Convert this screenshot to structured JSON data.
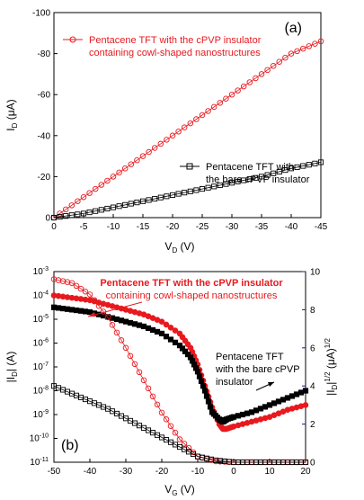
{
  "colors": {
    "red": "#e8191e",
    "black": "#000000",
    "blue": "#1a1aa6",
    "axis": "#000000"
  },
  "chart_data": [
    {
      "type": "scatter",
      "panel_label": "(a)",
      "xlabel": "V",
      "xlabel_sub": "D",
      "xlabel_unit": " (V)",
      "ylabel": "I",
      "ylabel_sub": "D",
      "ylabel_unit": " (μA)",
      "xlim": [
        0,
        -45
      ],
      "ylim": [
        0,
        -100
      ],
      "xticks": [
        0,
        -5,
        -10,
        -15,
        -20,
        -25,
        -30,
        -35,
        -40,
        -45
      ],
      "yticks": [
        0,
        -20,
        -40,
        -60,
        -80,
        -100
      ],
      "series": [
        {
          "name": "Pentacene TFT with the cPVP insulator containing cowl-shaped nanostructures",
          "legend_lines": [
            "Pentacene TFT with the cPVP insulator",
            "containing cowl-shaped nanostructures"
          ],
          "color": "#e8191e",
          "marker": "open-circle",
          "x": [
            0,
            -5,
            -10,
            -15,
            -20,
            -25,
            -30,
            -35,
            -40,
            -45
          ],
          "y": [
            0,
            -10,
            -20,
            -30,
            -40,
            -50,
            -60,
            -70,
            -80,
            -86
          ]
        },
        {
          "name": "Pentacene TFT with the bare cPVP insulator",
          "legend_lines": [
            "Pentacene TFT with",
            "the bare cPVP insulator"
          ],
          "color": "#000000",
          "marker": "open-square",
          "x": [
            0,
            -5,
            -10,
            -15,
            -20,
            -25,
            -30,
            -35,
            -40,
            -45
          ],
          "y": [
            0,
            -2,
            -5,
            -8,
            -11,
            -14,
            -17,
            -20,
            -24,
            -27
          ]
        }
      ]
    },
    {
      "type": "scatter",
      "panel_label": "(b)",
      "xlabel": "V",
      "xlabel_sub": "G",
      "xlabel_unit": " (V)",
      "ylabel_left": "|I",
      "ylabel_left_sub": "D",
      "ylabel_left_end": "| (A)",
      "ylabel_right": "|I",
      "ylabel_right_sub": "D",
      "ylabel_right_end": "|",
      "ylabel_right_sup": "1/2",
      "ylabel_right_unit": " (μA)",
      "ylabel_right_unit_sup": "1/2",
      "xlim": [
        -50,
        20
      ],
      "ylim_left_log10": [
        -11,
        -3
      ],
      "ylim_right": [
        0,
        10
      ],
      "xticks": [
        -50,
        -40,
        -30,
        -20,
        -10,
        0,
        10,
        20
      ],
      "yticks_left_exp": [
        -11,
        -10,
        -9,
        -8,
        -7,
        -6,
        -5,
        -4,
        -3
      ],
      "yticks_left_base": "10",
      "yticks_right": [
        0,
        2,
        4,
        6,
        8,
        10
      ],
      "series": [
        {
          "name": "Pentacene TFT with the cPVP insulator containing cowl-shaped nanostructures",
          "legend_lines": [
            "Pentacene TFT with the cPVP insulator",
            "containing cowl-shaped nanostructures"
          ],
          "color": "#e8191e",
          "marker": "filled-circle",
          "axis": "left-log",
          "x": [
            -50,
            -45,
            -40,
            -35,
            -30,
            -25,
            -20,
            -15,
            -12,
            -10,
            -8,
            -6,
            -4,
            -3,
            -2,
            0,
            5,
            10,
            15,
            20
          ],
          "log10_y": [
            -4.0,
            -4.1,
            -4.2,
            -4.4,
            -4.6,
            -4.8,
            -5.1,
            -5.6,
            -6.2,
            -6.9,
            -7.8,
            -8.7,
            -9.4,
            -9.6,
            -9.6,
            -9.5,
            -9.3,
            -9.1,
            -8.8,
            -8.6
          ]
        },
        {
          "name": "Pentacene TFT with the bare cPVP insulator",
          "legend_lines": [
            "Pentacene TFT",
            "with the bare cPVP",
            "insulator"
          ],
          "color": "#000000",
          "marker": "filled-square",
          "axis": "left-log",
          "x": [
            -50,
            -45,
            -40,
            -35,
            -30,
            -25,
            -20,
            -15,
            -12,
            -10,
            -8,
            -6,
            -4,
            -3,
            -2,
            0,
            5,
            10,
            15,
            20
          ],
          "log10_y": [
            -4.5,
            -4.6,
            -4.7,
            -4.9,
            -5.1,
            -5.3,
            -5.6,
            -6.1,
            -6.6,
            -7.2,
            -8.0,
            -8.9,
            -9.2,
            -9.3,
            -9.2,
            -9.1,
            -8.9,
            -8.6,
            -8.3,
            -8.0
          ]
        },
        {
          "name": "Pentacene TFT with the cPVP insulator containing cowl-shaped nanostructures",
          "color": "#e8191e",
          "marker": "open-circle",
          "axis": "right",
          "x": [
            -50,
            -45,
            -40,
            -35,
            -30,
            -25,
            -20,
            -15,
            -10,
            -5,
            0,
            5,
            10,
            15,
            20
          ],
          "y": [
            9.6,
            9.4,
            8.8,
            7.6,
            6.0,
            4.3,
            2.6,
            1.2,
            0.3,
            0.05,
            0,
            0,
            0,
            0,
            0
          ]
        },
        {
          "name": "Pentacene TFT with the bare cPVP insulator",
          "color": "#000000",
          "marker": "open-square",
          "axis": "right",
          "x": [
            -50,
            -45,
            -40,
            -35,
            -30,
            -25,
            -20,
            -15,
            -10,
            -5,
            0,
            5,
            10,
            15,
            20
          ],
          "y": [
            4.0,
            3.6,
            3.2,
            2.8,
            2.3,
            1.8,
            1.3,
            0.8,
            0.3,
            0.1,
            0,
            0,
            0,
            0,
            0
          ]
        }
      ]
    }
  ]
}
